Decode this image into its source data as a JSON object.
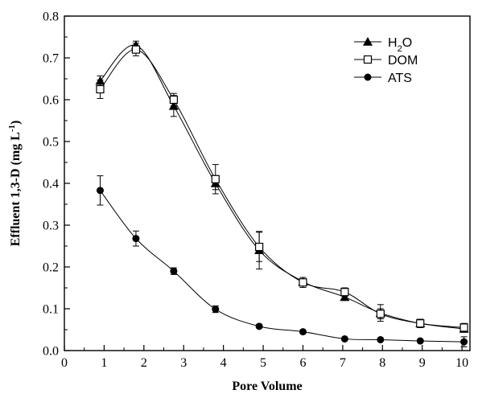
{
  "chart_data": {
    "type": "line",
    "title": "",
    "xlabel": "Pore Volume",
    "ylabel_parts": {
      "main": "Effluent 1,3-D (mg L",
      "sup": "-1",
      "end": ")"
    },
    "xlim": [
      0,
      10.2
    ],
    "ylim": [
      0,
      0.8
    ],
    "xticks": [
      0,
      1,
      2,
      3,
      4,
      5,
      6,
      7,
      8,
      9,
      10
    ],
    "yticks": [
      0.0,
      0.1,
      0.2,
      0.3,
      0.4,
      0.5,
      0.6,
      0.7,
      0.8
    ],
    "ytick_labels": [
      "0.0",
      "0.1",
      "0.2",
      "0.3",
      "0.4",
      "0.5",
      "0.6",
      "0.7",
      "0.8"
    ],
    "legend_position": "top-right",
    "series": [
      {
        "name": "H2O",
        "legend_parts": {
          "main": "H",
          "sub": "2",
          "end": "O"
        },
        "marker": "triangle-filled",
        "x": [
          0.9,
          1.8,
          2.75,
          3.8,
          4.9,
          6.0,
          7.05,
          7.95,
          8.95,
          10.05
        ],
        "y": [
          0.645,
          0.73,
          0.585,
          0.4,
          0.24,
          0.165,
          0.128,
          0.09,
          0.065,
          0.052
        ],
        "err": [
          0.012,
          0.01,
          0.025,
          0.015,
          0.045,
          0.01,
          0.008,
          0.02,
          0.01,
          0.008
        ]
      },
      {
        "name": "DOM",
        "legend_parts": {
          "main": "DOM",
          "sub": "",
          "end": ""
        },
        "marker": "square-open",
        "x": [
          0.9,
          1.8,
          2.75,
          3.8,
          4.9,
          6.0,
          7.05,
          7.95,
          8.95,
          10.05
        ],
        "y": [
          0.625,
          0.72,
          0.6,
          0.41,
          0.248,
          0.163,
          0.14,
          0.088,
          0.065,
          0.055
        ],
        "err": [
          0.022,
          0.015,
          0.015,
          0.035,
          0.035,
          0.012,
          0.01,
          0.012,
          0.01,
          0.01
        ]
      },
      {
        "name": "ATS",
        "legend_parts": {
          "main": "ATS",
          "sub": "",
          "end": ""
        },
        "marker": "circle-filled",
        "x": [
          0.9,
          1.8,
          2.75,
          3.8,
          4.9,
          6.0,
          7.05,
          7.95,
          8.95,
          10.05
        ],
        "y": [
          0.383,
          0.268,
          0.19,
          0.099,
          0.058,
          0.045,
          0.028,
          0.026,
          0.023,
          0.021
        ],
        "err": [
          0.035,
          0.018,
          0.008,
          0.008,
          0.004,
          0.003,
          0.003,
          0.003,
          0.003,
          0.012
        ]
      }
    ]
  }
}
